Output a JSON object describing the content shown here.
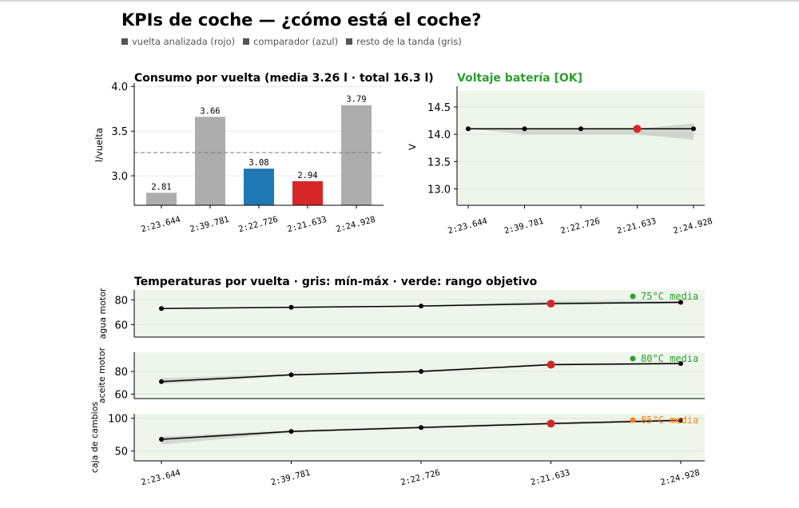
{
  "page": {
    "title": "KPIs de coche — ¿cómo está el coche?",
    "legend": [
      {
        "label": "vuelta analizada (rojo)"
      },
      {
        "label": "comparador (azul)"
      },
      {
        "label": "resto de la tanda (gris)"
      }
    ]
  },
  "colors": {
    "grey": "#adadad",
    "blue": "#1f77b4",
    "red": "#d62728",
    "green": "#2ca02c",
    "orange": "#ff7f0e",
    "band": "#eef6ec"
  },
  "chart_data": [
    {
      "id": "consumo",
      "type": "bar",
      "title": "Consumo por vuelta (media 3.26 l · total 16.3 l)",
      "ylabel": "l/vuelta",
      "categories": [
        "2:23.644",
        "2:39.781",
        "2:22.726",
        "2:21.633",
        "2:24.928"
      ],
      "values": [
        2.81,
        3.66,
        3.08,
        2.94,
        3.79
      ],
      "value_labels": [
        "2.81",
        "3.66",
        "3.08",
        "2.94",
        "3.79"
      ],
      "bar_roles": [
        "grey",
        "grey",
        "blue",
        "red",
        "grey"
      ],
      "mean": 3.26,
      "ylim": [
        2.67,
        4.02
      ],
      "yticks": [
        3.0,
        3.5,
        4.0
      ],
      "ytick_labels": [
        "3.0",
        "3.5",
        "4.0"
      ]
    },
    {
      "id": "voltaje",
      "type": "line",
      "title": "Voltaje batería [OK]",
      "ylabel": "V",
      "categories": [
        "2:23.644",
        "2:39.781",
        "2:22.726",
        "2:21.633",
        "2:24.928"
      ],
      "values": [
        14.1,
        14.1,
        14.1,
        14.1,
        14.1
      ],
      "band_min": [
        14.1,
        14.0,
        14.0,
        14.0,
        13.9
      ],
      "band_max": [
        14.1,
        14.1,
        14.1,
        14.1,
        14.2
      ],
      "highlight_index": 3,
      "target_range": [
        12.7,
        14.8
      ],
      "ylim": [
        12.7,
        14.85
      ],
      "yticks": [
        13.0,
        13.5,
        14.0,
        14.5
      ],
      "ytick_labels": [
        "13.0",
        "13.5",
        "14.0",
        "14.5"
      ]
    },
    {
      "id": "temperaturas",
      "type": "line",
      "title": "Temperaturas por vuelta · gris: mín-máx · verde: rango objetivo",
      "categories": [
        "2:23.644",
        "2:39.781",
        "2:22.726",
        "2:21.633",
        "2:24.928"
      ],
      "highlight_index": 3,
      "panels": [
        {
          "ylabel": "agua motor",
          "values": [
            73,
            74,
            75,
            77,
            78
          ],
          "band_min": [
            73,
            73.5,
            74.5,
            76,
            77
          ],
          "band_max": [
            73.5,
            74.5,
            75.5,
            79,
            79
          ],
          "target_range": [
            50,
            88
          ],
          "ylim": [
            50,
            88
          ],
          "yticks": [
            60,
            80
          ],
          "ytick_labels": [
            "60",
            "80"
          ],
          "annotation": "75°C media",
          "annotation_color": "green"
        },
        {
          "ylabel": "aceite motor",
          "values": [
            71,
            77,
            80,
            86,
            87
          ],
          "band_min": [
            69,
            76,
            79,
            85,
            86
          ],
          "band_max": [
            74,
            78,
            81,
            87,
            88
          ],
          "target_range": [
            56,
            97
          ],
          "ylim": [
            56,
            97
          ],
          "yticks": [
            60,
            80
          ],
          "ytick_labels": [
            "60",
            "80"
          ],
          "annotation": "80°C media",
          "annotation_color": "green"
        },
        {
          "ylabel": "caja de cambios",
          "values": [
            68,
            80,
            86,
            92,
            97
          ],
          "band_min": [
            60,
            78,
            84,
            90,
            95
          ],
          "band_max": [
            72,
            82,
            88,
            94,
            99
          ],
          "target_range": [
            35,
            107
          ],
          "ylim": [
            35,
            107
          ],
          "yticks": [
            50,
            100
          ],
          "ytick_labels": [
            "50",
            "100"
          ],
          "annotation": "85°C media",
          "annotation_color": "orange"
        }
      ]
    }
  ]
}
